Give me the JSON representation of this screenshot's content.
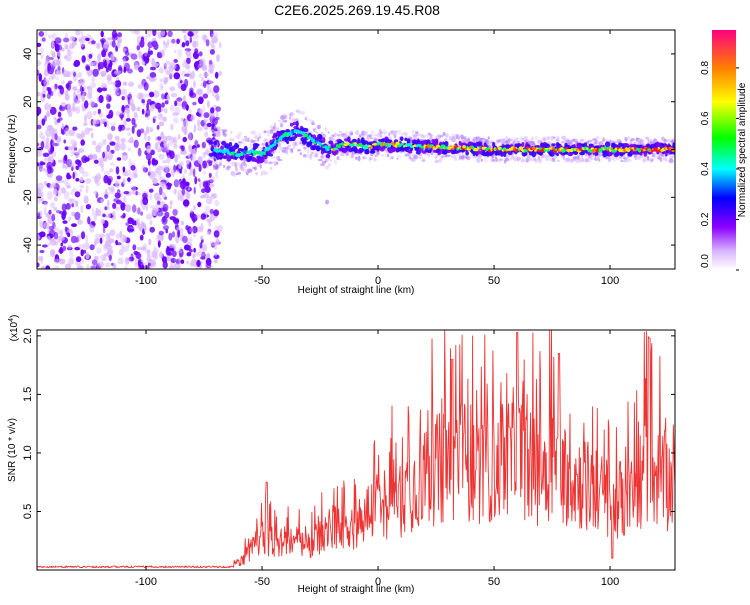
{
  "title": "C2E6.2025.269.19.45.R08",
  "colors": {
    "line": "#ee3333",
    "spec_strong": "#6a00ff",
    "spec_weak": "#d8b4ff"
  },
  "chart_data": [
    {
      "type": "heatmap",
      "name": "spectrogram",
      "xlabel": "Height of straight line (km)",
      "ylabel": "Frequency (Hz)",
      "xlim": [
        -147,
        128
      ],
      "ylim": [
        -50,
        50
      ],
      "xticks": [
        -100,
        -50,
        0,
        50,
        100
      ],
      "yticks": [
        -40,
        -20,
        0,
        20,
        40
      ],
      "noise_region_x": [
        -147,
        -72
      ],
      "trace": [
        [
          -70,
          0
        ],
        [
          -65,
          -1
        ],
        [
          -60,
          -2
        ],
        [
          -55,
          -1
        ],
        [
          -50,
          -2
        ],
        [
          -45,
          2
        ],
        [
          -40,
          6
        ],
        [
          -35,
          8
        ],
        [
          -30,
          5
        ],
        [
          -25,
          2
        ],
        [
          -20,
          0
        ],
        [
          -15,
          2
        ],
        [
          -10,
          2
        ],
        [
          -5,
          1
        ],
        [
          0,
          2
        ],
        [
          10,
          2
        ],
        [
          20,
          1
        ],
        [
          30,
          1
        ],
        [
          50,
          0
        ],
        [
          70,
          0
        ],
        [
          90,
          0
        ],
        [
          110,
          0
        ],
        [
          128,
          0
        ]
      ],
      "colorbar": {
        "label": "Normalized spectral amplitude",
        "range": [
          0,
          0.95
        ],
        "ticks": [
          "0.0",
          "0.2",
          "0.4",
          "0.6",
          "0.8"
        ]
      }
    },
    {
      "type": "line",
      "name": "snr",
      "xlabel": "Height of straight line (km)",
      "ylabel": "SNR (10 * v/v)",
      "y_multiplier": "(x10^4)",
      "multiplier_base": "(x10",
      "multiplier_exp": "4",
      "multiplier_close": ")",
      "xlim": [
        -147,
        128
      ],
      "ylim": [
        0,
        2.05
      ],
      "xticks": [
        -100,
        -50,
        0,
        50,
        100
      ],
      "yticks": [
        0.5,
        1.0,
        1.5,
        2.0
      ],
      "ytick_labels": [
        "0.5",
        "1.0",
        "1.5",
        "2.0"
      ],
      "envelope": [
        [
          -147,
          0.02
        ],
        [
          -70,
          0.03
        ],
        [
          -62,
          0.05
        ],
        [
          -57,
          0.15
        ],
        [
          -50,
          0.35
        ],
        [
          -45,
          0.3
        ],
        [
          -40,
          0.3
        ],
        [
          -35,
          0.3
        ],
        [
          -30,
          0.25
        ],
        [
          -25,
          0.35
        ],
        [
          -20,
          0.45
        ],
        [
          -10,
          0.5
        ],
        [
          -5,
          0.6
        ],
        [
          0,
          0.7
        ],
        [
          10,
          0.8
        ],
        [
          20,
          1.0
        ],
        [
          28,
          1.1
        ],
        [
          35,
          1.2
        ],
        [
          40,
          1.15
        ],
        [
          45,
          1.05
        ],
        [
          55,
          1.15
        ],
        [
          60,
          1.3
        ],
        [
          65,
          1.1
        ],
        [
          70,
          1.05
        ],
        [
          75,
          1.2
        ],
        [
          80,
          1.05
        ],
        [
          90,
          0.9
        ],
        [
          100,
          0.75
        ],
        [
          110,
          0.8
        ],
        [
          115,
          1.1
        ],
        [
          120,
          1.0
        ],
        [
          128,
          0.9
        ]
      ],
      "peaks": [
        [
          60,
          2.03
        ],
        [
          117,
          1.98
        ],
        [
          78,
          1.85
        ],
        [
          32,
          1.8
        ],
        [
          -48,
          0.75
        ]
      ],
      "dips": [
        [
          101,
          0.1
        ],
        [
          106,
          0.3
        ]
      ]
    }
  ]
}
